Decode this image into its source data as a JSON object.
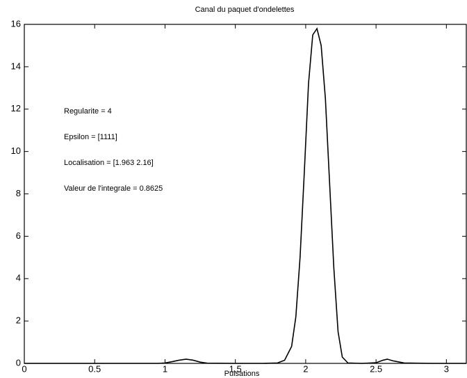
{
  "chart_data": {
    "type": "line",
    "title": "Canal du paquet d'ondelettes",
    "x_label": "Pulsations",
    "annotations": [
      "Regularite = 4",
      "Epsilon = [1111]",
      "Localisation = [1.963 2.16]",
      "Valeur de l'integrale = 0.8625"
    ],
    "x": [
      0,
      0.2,
      0.4,
      0.6,
      0.8,
      0.95,
      1.0,
      1.05,
      1.1,
      1.15,
      1.2,
      1.25,
      1.3,
      1.5,
      1.7,
      1.8,
      1.85,
      1.9,
      1.93,
      1.96,
      1.99,
      2.02,
      2.05,
      2.08,
      2.11,
      2.14,
      2.17,
      2.2,
      2.23,
      2.26,
      2.3,
      2.4,
      2.5,
      2.55,
      2.58,
      2.62,
      2.7,
      2.9,
      3.1416
    ],
    "series": [
      {
        "color": "#000000",
        "values": [
          0,
          0,
          0,
          0,
          0,
          0,
          0.02,
          0.08,
          0.15,
          0.2,
          0.15,
          0.06,
          0.01,
          0,
          0,
          0.02,
          0.15,
          0.8,
          2.2,
          5,
          9,
          13.2,
          15.5,
          15.8,
          15,
          12.5,
          8.5,
          4.5,
          1.5,
          0.3,
          0.02,
          0,
          0.03,
          0.15,
          0.2,
          0.12,
          0.02,
          0,
          0
        ]
      }
    ],
    "xlim": [
      0,
      3.1416
    ],
    "xticks": [
      0,
      0.5,
      1,
      1.5,
      2,
      2.5,
      3
    ],
    "ylim": [
      0,
      16
    ],
    "yticks": [
      0,
      2,
      4,
      6,
      8,
      10,
      12,
      14,
      16
    ],
    "grid": false
  }
}
